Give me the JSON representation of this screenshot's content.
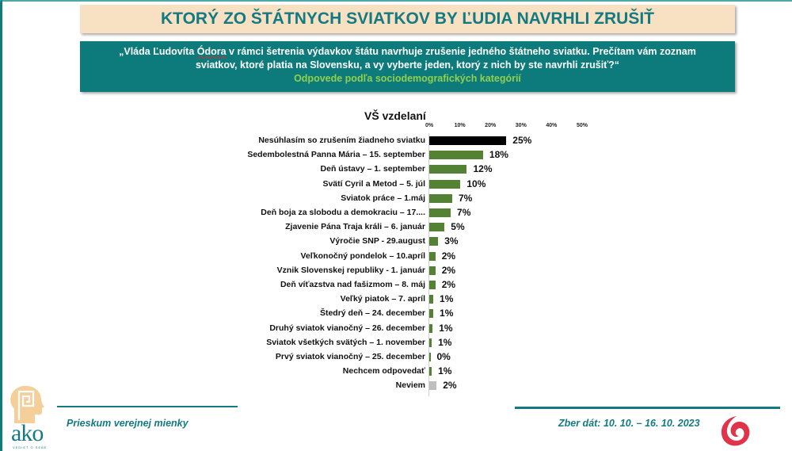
{
  "header": {
    "title": "KTORÝ ZO ŠTÁTNYCH SVIATKOV BY ĽUDIA NAVRHLI ZRUŠIŤ",
    "question_line1_pre": "„Vláda Ľudovíta ",
    "question_line1_name": "Ódora",
    "question_line1_post": " v rámci šetrenia výdavkov štátu navrhuje zrušenie jedného štátneho sviatku. Prečítam vám zoznam",
    "question_line2": "sviatkov,  ktoré platia na Slovensku, a vy vyberte jeden,  ktorý z nich by ste navrhli zrušiť?“",
    "subtitle": "Odpovede podľa sociodemografických kategórií"
  },
  "chart_data": {
    "type": "bar",
    "orientation": "horizontal",
    "title": "VŠ vzdelaní",
    "xlabel": "",
    "ylabel": "",
    "xlim": [
      0,
      50
    ],
    "ticks": [
      "0%",
      "10%",
      "20%",
      "30%",
      "40%",
      "50%"
    ],
    "grid": false,
    "legend": null,
    "categories": [
      "Nesúhlasím so zrušením žiadneho sviatku",
      "Sedembolestná Panna Mária – 15. september",
      "Deň ústavy – 1. september",
      "Svätí Cyril a Metod – 5. júl",
      "Sviatok práce – 1.máj",
      "Deň boja za slobodu a demokraciu – 17....",
      "Zjavenie Pána Traja králi – 6. január",
      "Výročie SNP - 29.august",
      "Veľkonočný pondelok – 10.apríl",
      "Vznik Slovenskej republiky - 1. január",
      "Deň víťazstva nad fašizmom – 8. máj",
      "Veľký piatok – 7. apríl",
      "Štedrý deň – 24. december",
      "Druhý sviatok vianočný – 26. december",
      "Sviatok všetkých svätých – 1. november",
      "Prvý sviatok vianočný – 25. december",
      "Nechcem odpovedať",
      "Neviem"
    ],
    "values": [
      25,
      18,
      12,
      10,
      7,
      7,
      5,
      3,
      2,
      2,
      2,
      1,
      1,
      1,
      1,
      0,
      1,
      2
    ],
    "bar_widths_est": [
      25.2,
      17.6,
      12.3,
      10.2,
      7.5,
      7.0,
      5.0,
      2.9,
      2.0,
      2.0,
      2.0,
      1.3,
      1.3,
      1.1,
      0.8,
      0.3,
      0.8,
      2.4
    ],
    "value_labels": [
      "25%",
      "18%",
      "12%",
      "10%",
      "7%",
      "7%",
      "5%",
      "3%",
      "2%",
      "2%",
      "2%",
      "1%",
      "1%",
      "1%",
      "1%",
      "0%",
      "1%",
      "2%"
    ],
    "colors": [
      "#000000",
      "#548235",
      "#548235",
      "#548235",
      "#548235",
      "#548235",
      "#548235",
      "#548235",
      "#548235",
      "#548235",
      "#548235",
      "#548235",
      "#548235",
      "#548235",
      "#548235",
      "#548235",
      "#548235",
      "#bfbfbf"
    ]
  },
  "footer": {
    "left_text": "Prieskum verejnej mienky",
    "right_text": "Zber dát: 10. 10. – 16. 10. 2023",
    "logo_text": "ako",
    "logo_tagline": "VEDIEŤ O SEBE",
    "logo_mark": "®"
  },
  "colors": {
    "teal": "#137a82",
    "question_bg": "#0d7b7b",
    "title_bg": "#f8e0c2",
    "subtitle_green": "#8fd14f",
    "bar_green": "#548235",
    "bar_black": "#000000",
    "bar_gray": "#bfbfbf",
    "swirl_red": "#e0344a"
  }
}
